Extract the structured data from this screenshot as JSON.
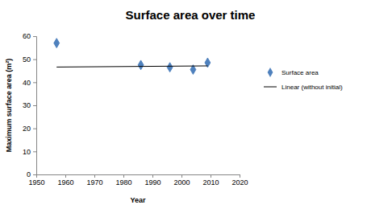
{
  "chart_data": {
    "type": "scatter",
    "title": "Surface area over time",
    "x_label": "Year",
    "y_label": "Maximum surface area (m²)",
    "xlim": [
      1950,
      2020
    ],
    "xticks": [
      1950,
      1960,
      1970,
      1980,
      1990,
      2000,
      2010,
      2020
    ],
    "ylim": [
      0,
      60
    ],
    "yticks": [
      0,
      10,
      20,
      30,
      40,
      50,
      60
    ],
    "grid": false,
    "legend": "right",
    "series": [
      {
        "name": "Surface area",
        "type": "scatter",
        "marker": "diamond",
        "color": "#4f81bd",
        "x": [
          1957,
          1986,
          1996,
          2004,
          2009
        ],
        "values": [
          57,
          47.5,
          46.5,
          45.5,
          48.5
        ]
      },
      {
        "name": "Linear (without initial)",
        "type": "line",
        "line_style": "solid",
        "color": "#000000",
        "x": [
          1957,
          2009
        ],
        "values": [
          46.6,
          47.1
        ]
      }
    ]
  }
}
